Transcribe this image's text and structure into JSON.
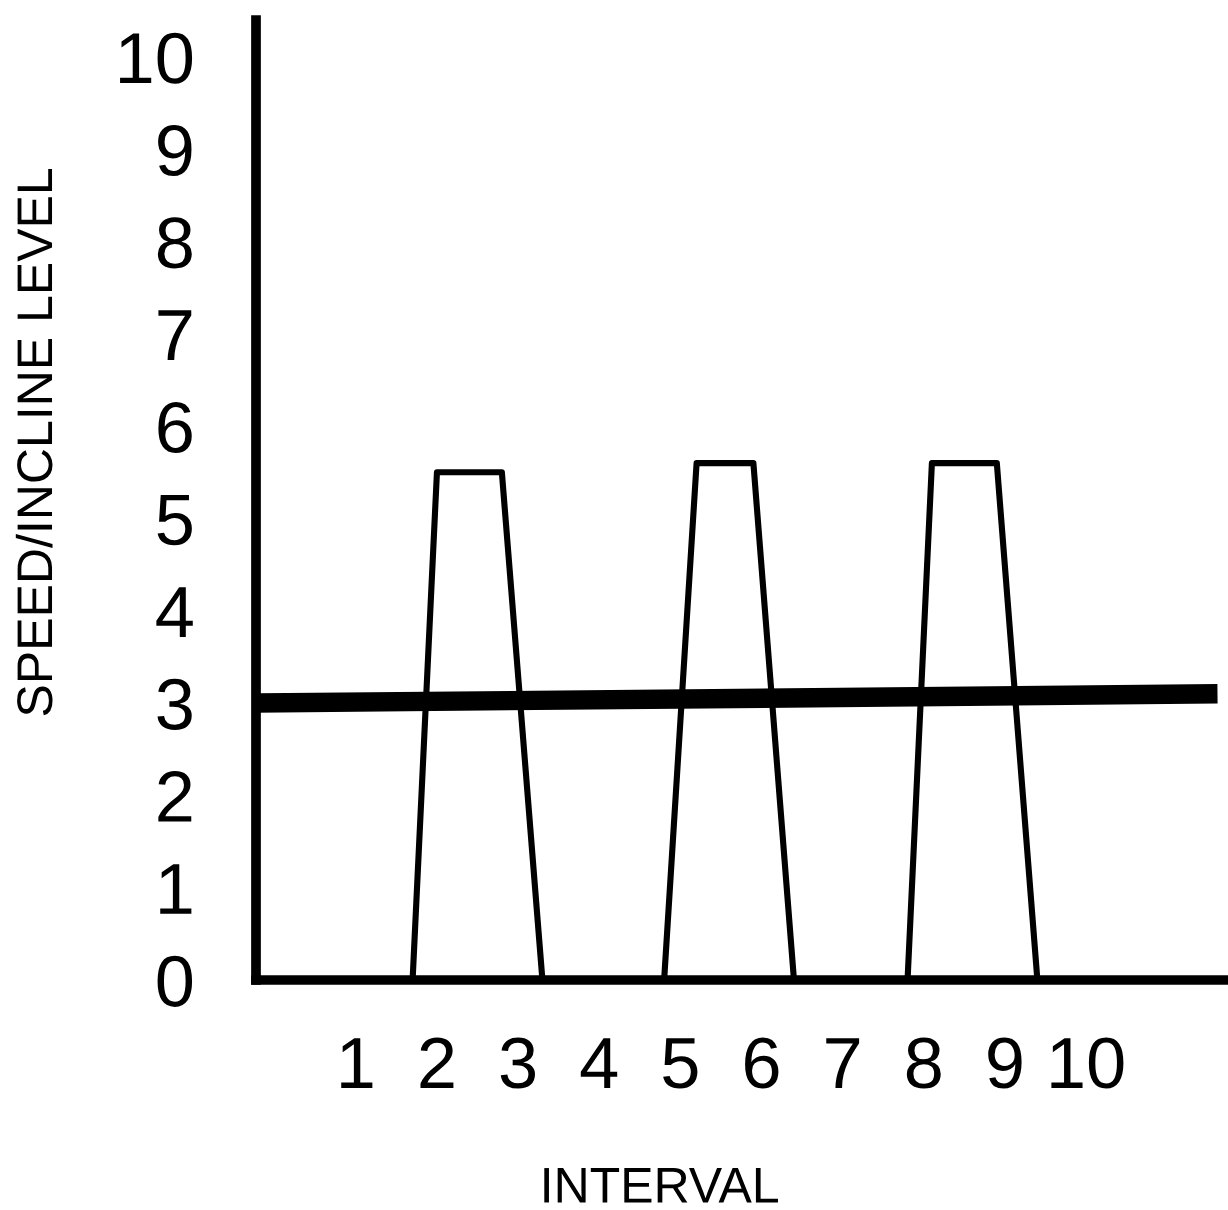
{
  "chart_data": {
    "type": "line",
    "xlabel": "INTERVAL",
    "ylabel": "SPEED/INCLINE LEVEL",
    "xlim": [
      -0.23,
      11.7
    ],
    "ylim": [
      0,
      10.4
    ],
    "xticks": [
      1,
      2,
      3,
      4,
      5,
      6,
      7,
      8,
      9,
      10
    ],
    "yticks": [
      0,
      1,
      2,
      3,
      4,
      5,
      6,
      7,
      8,
      9,
      10
    ],
    "grid": false,
    "legend": false,
    "marker": "none",
    "line_style": "solid",
    "series": [
      {
        "color": "#000000",
        "x": [
          -0.2,
          11.5
        ],
        "values": [
          3.0,
          3.1
        ]
      },
      {
        "color": "#000000",
        "x": [
          1.7,
          2.0,
          2.8,
          3.3,
          4.0,
          4.8,
          5.2,
          5.9,
          6.4,
          7.0,
          7.8,
          8.1,
          8.9,
          9.4
        ],
        "values": [
          0,
          5.5,
          5.5,
          0,
          null,
          0,
          5.6,
          5.6,
          0,
          null,
          0,
          5.6,
          5.6,
          0
        ]
      }
    ]
  }
}
